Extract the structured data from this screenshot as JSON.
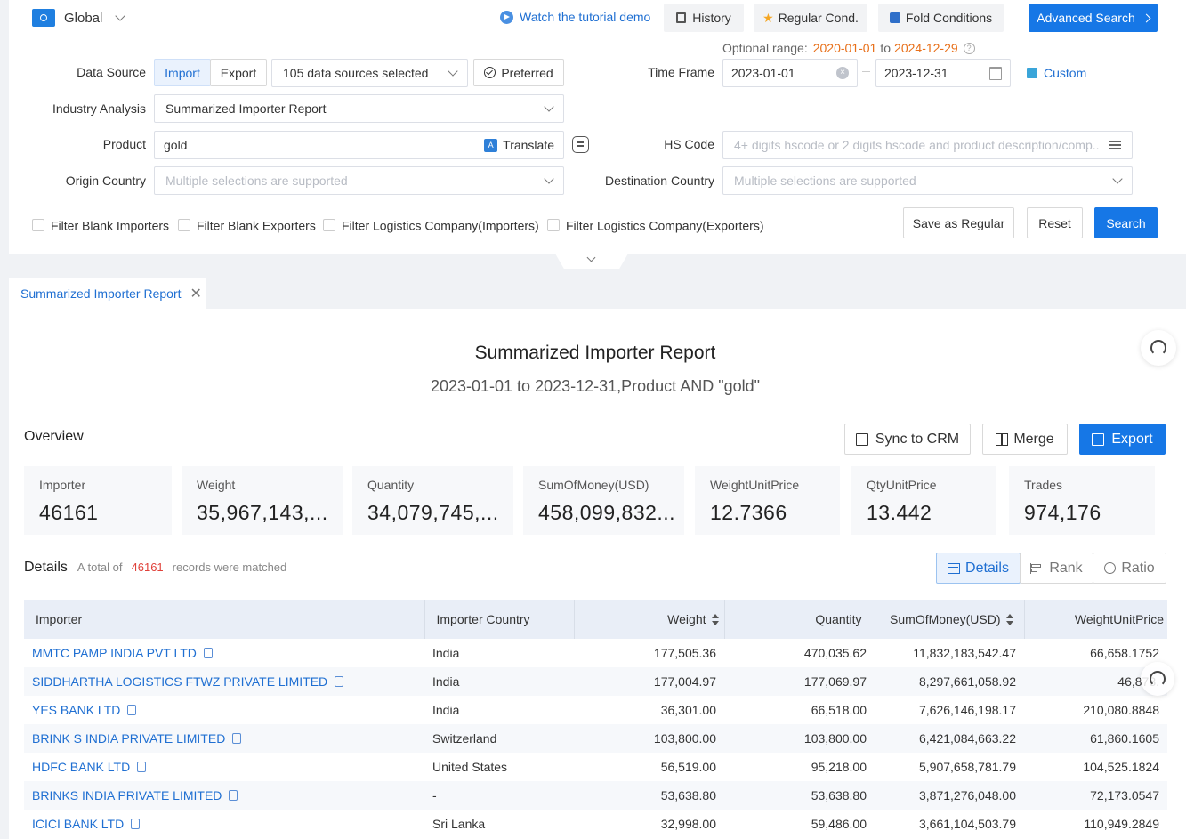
{
  "topbar": {
    "region": "Global",
    "tutorial": "Watch the tutorial demo",
    "history": "History",
    "regular_cond": "Regular Cond.",
    "fold_conditions": "Fold Conditions",
    "advanced_search": "Advanced Search"
  },
  "filters": {
    "optional_range_label": "Optional range:",
    "optional_range_start": "2020-01-01",
    "optional_range_to": "to",
    "optional_range_end": "2024-12-29",
    "data_source_label": "Data Source",
    "import_tab": "Import",
    "export_tab": "Export",
    "data_sources_selected": "105 data sources selected",
    "preferred": "Preferred",
    "time_frame_label": "Time Frame",
    "time_from": "2023-01-01",
    "time_to": "2023-12-31",
    "custom": "Custom",
    "industry_label": "Industry Analysis",
    "industry_value": "Summarized Importer Report",
    "product_label": "Product",
    "product_value": "gold",
    "translate": "Translate",
    "hs_label": "HS Code",
    "hs_placeholder": "4+ digits hscode or 2 digits hscode and product description/comp...",
    "origin_label": "Origin Country",
    "origin_placeholder": "Multiple selections are supported",
    "dest_label": "Destination Country",
    "dest_placeholder": "Multiple selections are supported",
    "filter_blank_importers": "Filter Blank Importers",
    "filter_blank_exporters": "Filter Blank Exporters",
    "filter_logistics_importers": "Filter Logistics Company(Importers)",
    "filter_logistics_exporters": "Filter Logistics Company(Exporters)",
    "save_as_regular": "Save as Regular",
    "reset": "Reset",
    "search": "Search"
  },
  "report_tab": {
    "label": "Summarized Importer Report"
  },
  "report": {
    "title": "Summarized Importer Report",
    "subtitle": "2023-01-01 to 2023-12-31,Product AND \"gold\"",
    "overview_label": "Overview",
    "sync_crm": "Sync to CRM",
    "merge": "Merge",
    "export": "Export"
  },
  "overview_cards": [
    {
      "title": "Importer",
      "value": "46161"
    },
    {
      "title": "Weight",
      "value": "35,967,143,..."
    },
    {
      "title": "Quantity",
      "value": "34,079,745,..."
    },
    {
      "title": "SumOfMoney(USD)",
      "value": "458,099,832..."
    },
    {
      "title": "WeightUnitPrice",
      "value": "12.7366"
    },
    {
      "title": "QtyUnitPrice",
      "value": "13.442"
    },
    {
      "title": "Trades",
      "value": "974,176"
    }
  ],
  "details": {
    "label": "Details",
    "total_prefix": "A total of",
    "total_count": "46161",
    "total_suffix": "records were matched",
    "tab_details": "Details",
    "tab_rank": "Rank",
    "tab_ratio": "Ratio"
  },
  "table": {
    "columns": [
      "Importer",
      "Importer Country",
      "Weight",
      "Quantity",
      "SumOfMoney(USD)",
      "WeightUnitPrice"
    ],
    "rows": [
      [
        "MMTC PAMP INDIA PVT LTD",
        "India",
        "177,505.36",
        "470,035.62",
        "11,832,183,542.47",
        "66,658.1752"
      ],
      [
        "SIDDHARTHA LOGISTICS FTWZ PRIVATE LIMITED",
        "India",
        "177,004.97",
        "177,069.97",
        "8,297,661,058.92",
        "46,878."
      ],
      [
        "YES BANK LTD",
        "India",
        "36,301.00",
        "66,518.00",
        "7,626,146,198.17",
        "210,080.8848"
      ],
      [
        "BRINK S INDIA PRIVATE LIMITED",
        "Switzerland",
        "103,800.00",
        "103,800.00",
        "6,421,084,663.22",
        "61,860.1605"
      ],
      [
        "HDFC BANK LTD",
        "United States",
        "56,519.00",
        "95,218.00",
        "5,907,658,781.79",
        "104,525.1824"
      ],
      [
        "BRINKS INDIA PRIVATE LIMITED",
        "-",
        "53,638.80",
        "53,638.80",
        "3,871,276,048.00",
        "72,173.0547"
      ],
      [
        "ICICI BANK LTD",
        "Sri Lanka",
        "32,998.00",
        "59,486.00",
        "3,661,104,503.79",
        "110,949.2849"
      ]
    ]
  },
  "colors": {
    "primary": "#1677e6",
    "link": "#1f6fd2",
    "accent_orange": "#e8701a",
    "count_red": "#e0413a"
  }
}
